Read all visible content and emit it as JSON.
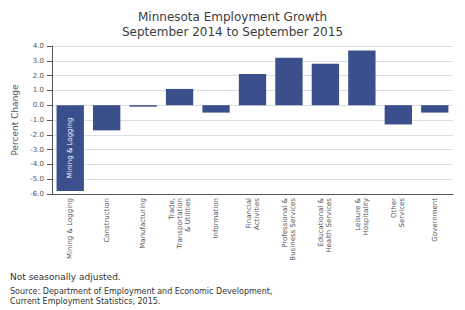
{
  "chart_data": {
    "type": "bar",
    "title": "Minnesota Employment Growth\nSeptember 2014 to September 2015",
    "ylabel": "Percent Change",
    "categories": [
      "Mining & Logging",
      "Construction",
      "Manufacturing",
      "Trade,\nTransportation\n& Utilities",
      "Information",
      "Financial\nActivities",
      "Professional &\nBusiness Services",
      "Educational &\nHealth Services",
      "Leisure &\nHospitality",
      "Other\nServices",
      "Government"
    ],
    "values": [
      -5.8,
      -1.7,
      -0.1,
      1.1,
      -0.5,
      2.1,
      3.2,
      2.8,
      3.7,
      -1.3,
      -0.5
    ],
    "color": "#3A4F8B",
    "ylim": [
      -6.0,
      4.0
    ],
    "yticks": [
      {
        "value": -6.0,
        "label": "-6.0"
      },
      {
        "value": -5.0,
        "label": "-5.0"
      },
      {
        "value": -4.0,
        "label": "-4.0"
      },
      {
        "value": -3.0,
        "label": "-3.0"
      },
      {
        "value": -2.0,
        "label": "-2.0"
      },
      {
        "value": -1.0,
        "label": "-1.0"
      },
      {
        "value": 0.0,
        "label": "0.0"
      },
      {
        "value": 1.0,
        "label": "1.0"
      },
      {
        "value": 2.0,
        "label": "2.0"
      },
      {
        "value": 3.0,
        "label": "3.0"
      },
      {
        "value": 4.0,
        "label": "4.0"
      }
    ],
    "grid": true,
    "annotations": [
      {
        "text": "Mining & Logging",
        "category": "Mining & Logging"
      },
      {
        "text": "Not seasonally adjusted."
      },
      {
        "text": "Source: Department of Employment and Economic Development,\nCurrent Employment Statistics, 2015."
      }
    ]
  }
}
